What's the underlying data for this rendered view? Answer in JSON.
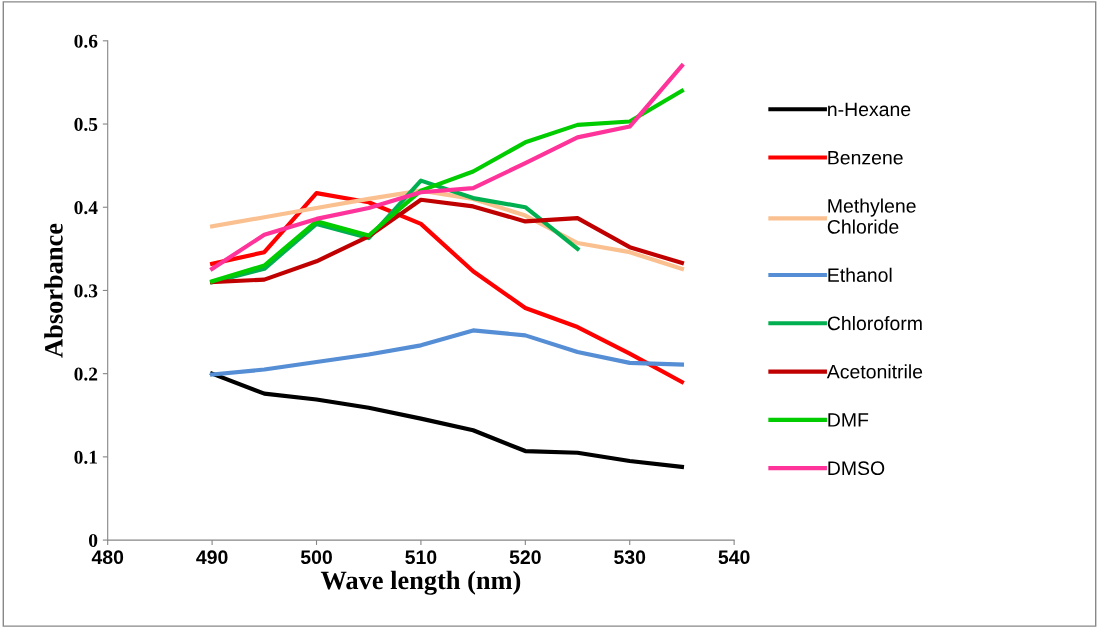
{
  "chart_data": {
    "type": "line",
    "xlabel": "Wave length (nm)",
    "ylabel": "Absorbance",
    "x": [
      490,
      495,
      500,
      505,
      510,
      515,
      520,
      525,
      530,
      535
    ],
    "xlim": [
      480,
      540
    ],
    "xticks": [
      480,
      490,
      500,
      510,
      520,
      530,
      540
    ],
    "ylim": [
      0,
      0.6
    ],
    "yticks": [
      {
        "value": 0,
        "label": "0"
      },
      {
        "value": 0.1,
        "label": "0.1"
      },
      {
        "value": 0.2,
        "label": "0.2"
      },
      {
        "value": 0.3,
        "label": "0.3"
      },
      {
        "value": 0.4,
        "label": "0.4"
      },
      {
        "value": 0.5,
        "label": "0.5"
      },
      {
        "value": 0.6,
        "label": "0.6"
      }
    ],
    "grid": false,
    "legend": "right",
    "marker": "none",
    "line_style": "solid",
    "series": [
      {
        "name": "n-Hexane",
        "color": "#000000",
        "values": [
          0.2,
          0.176,
          0.169,
          0.159,
          0.146,
          0.132,
          0.107,
          0.105,
          0.095,
          0.088
        ]
      },
      {
        "name": "Benzene",
        "color": "#ff0000",
        "values": [
          0.332,
          0.346,
          0.417,
          0.406,
          0.38,
          0.323,
          0.279,
          0.256,
          0.224,
          0.19
        ]
      },
      {
        "name": "Methylene Chloride",
        "color": "#fac090",
        "values": [
          0.377,
          0.388,
          0.399,
          0.41,
          0.42,
          0.41,
          0.39,
          0.357,
          0.346,
          0.326
        ]
      },
      {
        "name": "Ethanol",
        "color": "#558ed5",
        "values": [
          0.199,
          0.205,
          0.214,
          0.223,
          0.234,
          0.252,
          0.246,
          0.226,
          0.213,
          0.211
        ]
      },
      {
        "name": "Chloroform",
        "color": "#00b050",
        "values": [
          0.31,
          0.326,
          0.38,
          0.363,
          0.432,
          0.411,
          0.4,
          0.35,
          null,
          null
        ]
      },
      {
        "name": "Acetonitrile",
        "color": "#c00000",
        "values": [
          0.31,
          0.313,
          0.335,
          0.365,
          0.409,
          0.401,
          0.383,
          0.387,
          0.352,
          0.333
        ]
      },
      {
        "name": "DMF",
        "color": "#00cc00",
        "values": [
          0.311,
          0.33,
          0.383,
          0.366,
          0.42,
          0.443,
          0.478,
          0.499,
          0.503,
          0.54
        ]
      },
      {
        "name": "DMSO",
        "color": "#ff3399",
        "values": [
          0.326,
          0.367,
          0.386,
          0.399,
          0.418,
          0.423,
          0.453,
          0.484,
          0.497,
          0.57
        ]
      }
    ]
  }
}
